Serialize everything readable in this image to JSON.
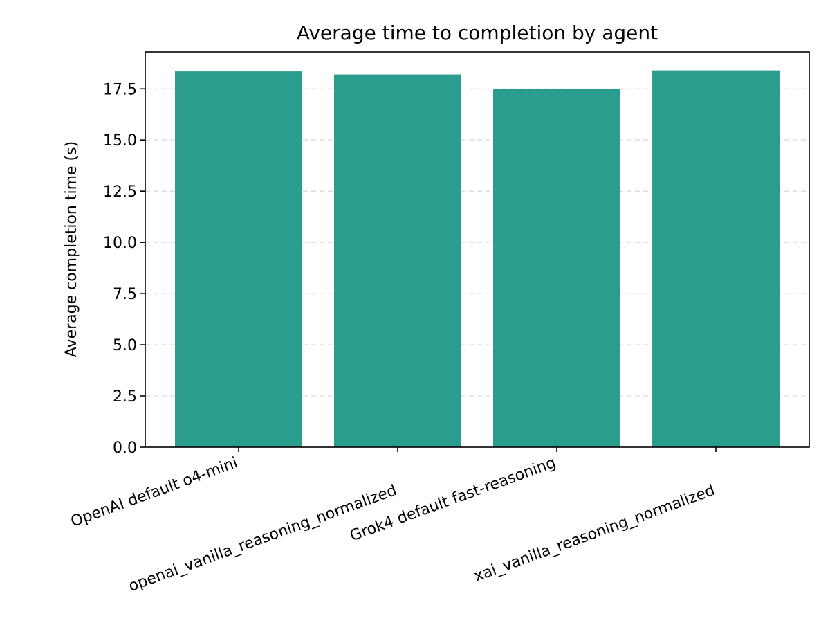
{
  "chart_data": {
    "type": "bar",
    "title": "Average time to completion by agent",
    "xlabel": "",
    "ylabel": "Average completion time (s)",
    "categories": [
      "OpenAI default o4-mini",
      "openai_vanilla_reasoning_normalized",
      "Grok4 default fast-reasoning",
      "xai_vanilla_reasoning_normalized"
    ],
    "values": [
      18.35,
      18.2,
      17.5,
      18.4
    ],
    "ylim": [
      0,
      19.3
    ],
    "yticks": [
      0.0,
      2.5,
      5.0,
      7.5,
      10.0,
      12.5,
      15.0,
      17.5
    ],
    "ytick_labels": [
      "0.0",
      "2.5",
      "5.0",
      "7.5",
      "10.0",
      "12.5",
      "15.0",
      "17.5"
    ],
    "bar_color": "#2a9d8f",
    "grid": "y-dashed",
    "legend": "none",
    "x_tick_rotation": "diagonal"
  }
}
